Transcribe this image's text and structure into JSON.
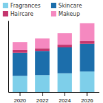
{
  "chart_data": {
    "type": "bar",
    "stacked": true,
    "categories": [
      "2020",
      "2022",
      "2024",
      "2026"
    ],
    "series": [
      {
        "name": "Fragrances",
        "color": "#7ecfea",
        "values": [
          18,
          19,
          21,
          23
        ]
      },
      {
        "name": "Skincare",
        "color": "#1c6eab",
        "values": [
          26,
          27,
          29,
          31
        ]
      },
      {
        "name": "Haircare",
        "color": "#c4366e",
        "values": [
          3,
          3,
          3,
          3
        ]
      },
      {
        "name": "Makeup",
        "color": "#f589c0",
        "values": [
          9,
          11,
          13,
          20
        ]
      }
    ],
    "ylim": [
      0,
      80
    ],
    "yticks": [],
    "grid": false,
    "legend": "top",
    "tick_labels": "x"
  }
}
